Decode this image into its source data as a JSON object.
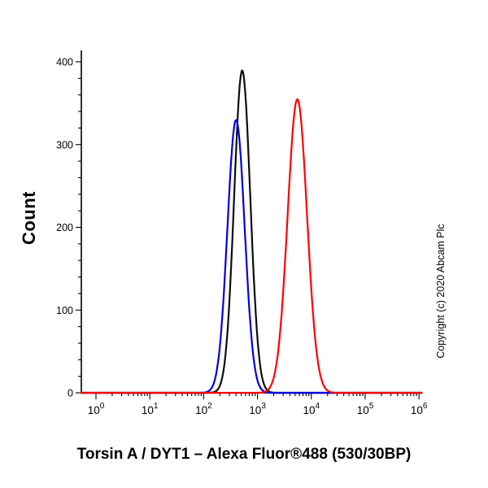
{
  "page": {
    "title": "Torsin A / DYT1 – Alexa Fluor®488 (530/30BP)",
    "copyright": "Copyright (c) 2020 Abcam Plc"
  },
  "chart_data": {
    "type": "line",
    "subtype": "flow-cytometry-histogram",
    "title": "Torsin A / DYT1 – Alexa Fluor®488 (530/30BP)",
    "xlabel": "",
    "ylabel": "Count",
    "x_scale": "log10",
    "xlim": [
      1,
      1000000
    ],
    "ylim": [
      0,
      415
    ],
    "grid": false,
    "legend": "none",
    "background_color": "#ffffff",
    "axis_color": "#000000",
    "y_major_ticks": [
      0,
      100,
      200,
      300,
      400
    ],
    "y_minor_tick_step": 20,
    "x_major_ticks": [
      {
        "base": "10",
        "exp": "0"
      },
      {
        "base": "10",
        "exp": "1"
      },
      {
        "base": "10",
        "exp": "2"
      },
      {
        "base": "10",
        "exp": "3"
      },
      {
        "base": "10",
        "exp": "4"
      },
      {
        "base": "10",
        "exp": "5"
      },
      {
        "base": "10",
        "exp": "6"
      }
    ],
    "series": [
      {
        "name": "black-curve",
        "color": "#0d0d0d",
        "peak_x": 520,
        "log10_mean": 2.716,
        "log10_sigma": 0.15,
        "peak_count": 390,
        "baseline_count": 0
      },
      {
        "name": "blue-curve",
        "color": "#0000dd",
        "peak_x": 400,
        "log10_mean": 2.602,
        "log10_sigma": 0.16,
        "peak_count": 330,
        "baseline_count": 0
      },
      {
        "name": "red-curve",
        "color": "#ff0000",
        "peak_x": 5500,
        "log10_mean": 3.74,
        "log10_sigma": 0.18,
        "peak_count": 355,
        "baseline_count": 0
      }
    ]
  }
}
